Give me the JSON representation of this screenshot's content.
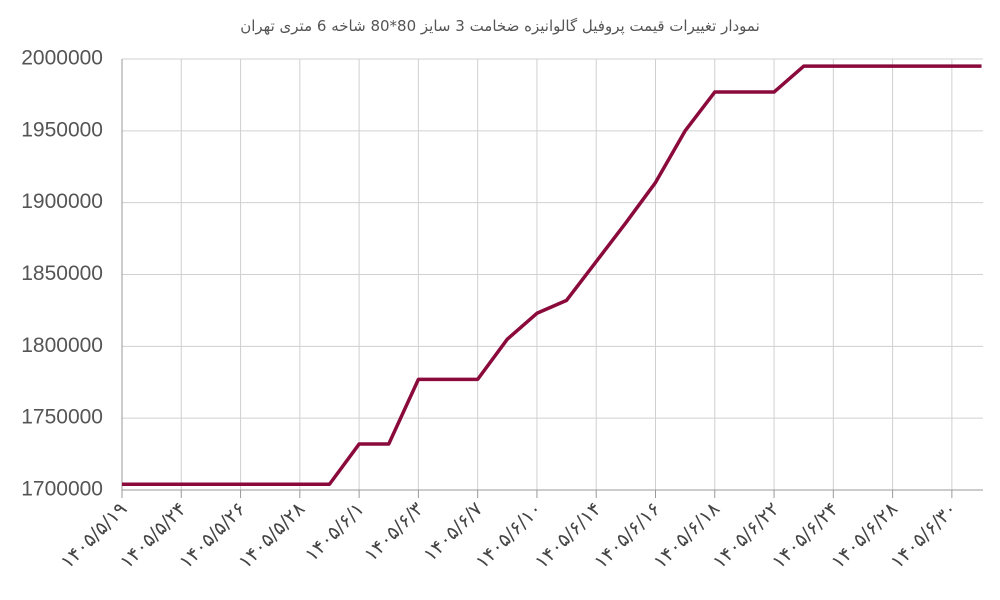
{
  "chart_data": {
    "type": "line",
    "title": "نمودار تغییرات قیمت پروفیل گالوانیزه ضخامت 3 سایز 80*80 شاخه 6 متری تهران",
    "categories": [
      "۱۴۰۵/۵/۱۹",
      null,
      "۱۴۰۵/۵/۲۴",
      null,
      "۱۴۰۵/۵/۲۶",
      null,
      "۱۴۰۵/۵/۲۸",
      null,
      "۱۴۰۵/۶/۱",
      null,
      "۱۴۰۵/۶/۳",
      null,
      "۱۴۰۵/۶/۷",
      null,
      "۱۴۰۵/۶/۱۰",
      null,
      "۱۴۰۵/۶/۱۴",
      null,
      "۱۴۰۵/۶/۱۶",
      null,
      "۱۴۰۵/۶/۱۸",
      null,
      "۱۴۰۵/۶/۲۲",
      null,
      "۱۴۰۵/۶/۲۴",
      null,
      "۱۴۰۵/۶/۲۸",
      null,
      "۱۴۰۵/۶/۳۰",
      null
    ],
    "series": [
      {
        "color": "#8b0a3c",
        "values": [
          1704000,
          1704000,
          1704000,
          1704000,
          1704000,
          1704000,
          1704000,
          1704000,
          1732000,
          1732000,
          1777000,
          1777000,
          1777000,
          1805000,
          1823000,
          1832000,
          1859000,
          1886000,
          1914000,
          1950000,
          1977000,
          1977000,
          1977000,
          1995000,
          1995000,
          1995000,
          1995000,
          1995000,
          1995000,
          1995000
        ]
      }
    ],
    "ylim": [
      1700000,
      2000000
    ],
    "yticks": [
      1700000,
      1750000,
      1800000,
      1850000,
      1900000,
      1950000,
      2000000
    ],
    "grid": true
  }
}
